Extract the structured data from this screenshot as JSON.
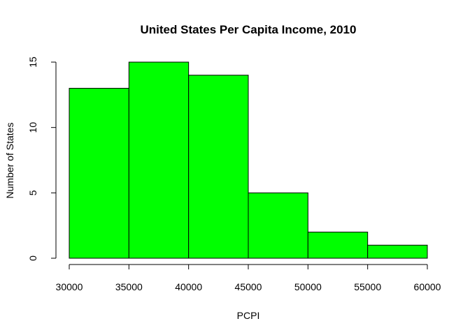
{
  "chart_data": {
    "type": "bar",
    "title": "United States Per Capita Income, 2010",
    "xlabel": "PCPI",
    "ylabel": "Number of States",
    "bins": [
      {
        "from": 30000,
        "to": 35000,
        "count": 13
      },
      {
        "from": 35000,
        "to": 40000,
        "count": 15
      },
      {
        "from": 40000,
        "to": 45000,
        "count": 14
      },
      {
        "from": 45000,
        "to": 50000,
        "count": 5
      },
      {
        "from": 50000,
        "to": 55000,
        "count": 2
      },
      {
        "from": 55000,
        "to": 60000,
        "count": 1
      }
    ],
    "xlim": [
      30000,
      60000
    ],
    "ylim": [
      0,
      15
    ],
    "x_ticks": [
      30000,
      35000,
      40000,
      45000,
      50000,
      55000,
      60000
    ],
    "y_ticks": [
      0,
      5,
      10,
      15
    ],
    "bar_color": "#00ff00",
    "grid": false,
    "legend": "none"
  }
}
